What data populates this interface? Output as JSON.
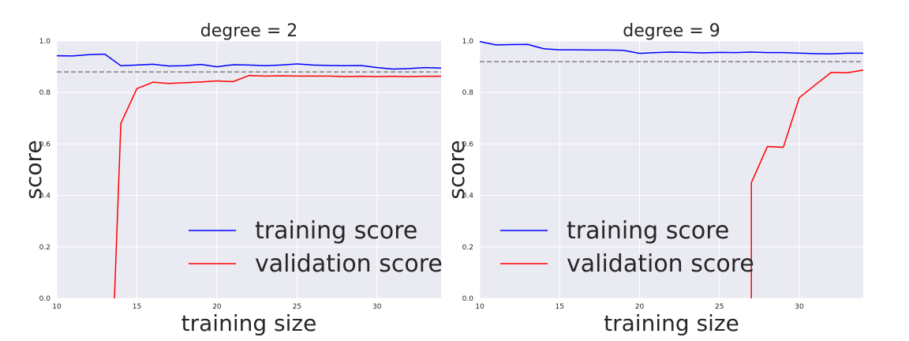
{
  "chart_data": [
    {
      "type": "line",
      "title": "degree = 2",
      "xlabel": "training size",
      "ylabel": "score",
      "xlim": [
        10,
        34
      ],
      "ylim": [
        0.0,
        1.0
      ],
      "xticks": [
        10,
        15,
        20,
        25,
        30
      ],
      "xtick_labels": [
        "10",
        "15",
        "20",
        "25",
        "30"
      ],
      "yticks": [
        0.0,
        0.2,
        0.4,
        0.6,
        0.8,
        1.0
      ],
      "ytick_labels": [
        "0.0",
        "0.2",
        "0.4",
        "0.6",
        "0.8",
        "1.0"
      ],
      "grid": true,
      "reference_line": 0.88,
      "legend_position": "lower right",
      "series": [
        {
          "name": "training score",
          "color": "#0000ff",
          "x": [
            10,
            11,
            12,
            13,
            14,
            15,
            16,
            17,
            18,
            19,
            20,
            21,
            22,
            23,
            24,
            25,
            26,
            27,
            28,
            29,
            30,
            31,
            32,
            33,
            34
          ],
          "y": [
            0.943,
            0.942,
            0.947,
            0.949,
            0.904,
            0.907,
            0.91,
            0.903,
            0.904,
            0.909,
            0.9,
            0.908,
            0.907,
            0.904,
            0.907,
            0.911,
            0.907,
            0.905,
            0.904,
            0.905,
            0.897,
            0.891,
            0.893,
            0.897,
            0.895
          ]
        },
        {
          "name": "validation score",
          "color": "#ff0000",
          "x": [
            13.6,
            14,
            15,
            16,
            17,
            18,
            19,
            20,
            21,
            22,
            23,
            24,
            25,
            26,
            27,
            28,
            29,
            30,
            31,
            32,
            33,
            34
          ],
          "y": [
            0.0,
            0.68,
            0.815,
            0.84,
            0.835,
            0.838,
            0.841,
            0.845,
            0.842,
            0.866,
            0.864,
            0.865,
            0.864,
            0.864,
            0.864,
            0.862,
            0.863,
            0.862,
            0.863,
            0.862,
            0.863,
            0.863
          ]
        }
      ]
    },
    {
      "type": "line",
      "title": "degree = 9",
      "xlabel": "training size",
      "ylabel": "score",
      "xlim": [
        10,
        34
      ],
      "ylim": [
        0.0,
        1.0
      ],
      "xticks": [
        10,
        15,
        20,
        25,
        30
      ],
      "xtick_labels": [
        "10",
        "15",
        "20",
        "25",
        "30"
      ],
      "yticks": [
        0.0,
        0.2,
        0.4,
        0.6,
        0.8,
        1.0
      ],
      "ytick_labels": [
        "0.0",
        "0.2",
        "0.4",
        "0.6",
        "0.8",
        "1.0"
      ],
      "grid": true,
      "reference_line": 0.92,
      "legend_position": "lower right",
      "series": [
        {
          "name": "training score",
          "color": "#0000ff",
          "x": [
            10,
            11,
            12,
            13,
            14,
            15,
            16,
            17,
            18,
            19,
            20,
            21,
            22,
            23,
            24,
            25,
            26,
            27,
            28,
            29,
            30,
            31,
            32,
            33,
            34
          ],
          "y": [
            0.998,
            0.985,
            0.986,
            0.987,
            0.97,
            0.966,
            0.966,
            0.965,
            0.965,
            0.964,
            0.952,
            0.955,
            0.957,
            0.956,
            0.954,
            0.956,
            0.955,
            0.957,
            0.955,
            0.955,
            0.953,
            0.951,
            0.95,
            0.953,
            0.953
          ]
        },
        {
          "name": "validation score",
          "color": "#ff0000",
          "x": [
            27,
            27,
            28,
            29,
            30,
            31,
            32,
            33,
            34
          ],
          "y": [
            0.0,
            0.45,
            0.59,
            0.587,
            0.78,
            0.83,
            0.878,
            0.877,
            0.887
          ]
        }
      ]
    }
  ]
}
